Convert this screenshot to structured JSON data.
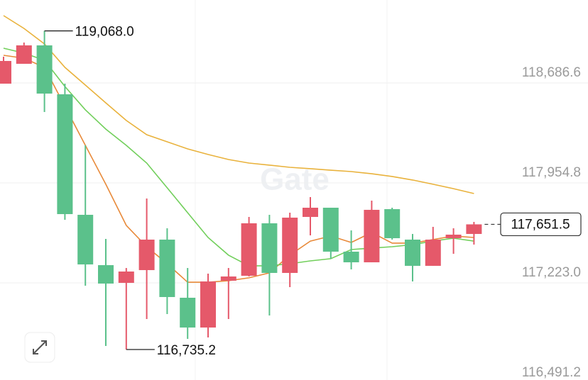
{
  "chart_data": {
    "type": "candlestick",
    "watermark": "Gate",
    "ylim": [
      116512,
      119294
    ],
    "yticks": [
      {
        "value": 118686.6,
        "label": "118,686.6"
      },
      {
        "value": 117954.8,
        "label": "117,954.8"
      },
      {
        "value": 117223.0,
        "label": "117,223.0"
      },
      {
        "value": 116491.2,
        "label": "116,491.2"
      }
    ],
    "grid": true,
    "up_color": "#e5596a",
    "down_color": "#5bc18b",
    "open": [
      118681.6,
      118826.9,
      118961.8,
      118603.7,
      117721.4,
      117352.9,
      117223.2,
      117316.6,
      117539.8,
      117114.2,
      116896.2,
      117238.8,
      117275.1,
      117659.2,
      117295.9,
      117705.9,
      117773.3,
      117451.6,
      117373.7,
      117762.9,
      117539.8,
      117347.8,
      117550.2,
      117581.3
    ],
    "high": [
      118878.8,
      118982.6,
      119068.0,
      118681.6,
      118230.1,
      117545.0,
      117332.2,
      117840.8,
      117622.8,
      117332.2,
      117290.7,
      117332.2,
      117705.9,
      117721.4,
      117737.0,
      117851.2,
      117773.3,
      117607.3,
      117825.2,
      117773.3,
      117581.3,
      117633.2,
      117622.8,
      117669.5
    ],
    "low": [
      118681.6,
      118826.9,
      118473.9,
      117685.1,
      117202.4,
      116761.3,
      116735.2,
      116958.5,
      116994.8,
      116813.2,
      116823.6,
      116958.5,
      117269.9,
      116984.5,
      117192.1,
      117570.9,
      117399.7,
      117321.8,
      117373.7,
      117539.8,
      117233.6,
      117347.8,
      117436.0,
      117503.5
    ],
    "close": [
      118847.7,
      118961.8,
      118608.9,
      117726.6,
      117358.1,
      117218.0,
      117306.2,
      117539.8,
      117119.4,
      116896.2,
      117233.6,
      117269.9,
      117659.2,
      117295.9,
      117700.7,
      117773.3,
      117451.6,
      117373.7,
      117757.8,
      117550.2,
      117347.8,
      117539.8,
      117576.1,
      117651.5
    ],
    "moving_averages": [
      {
        "color": "#e9b23c",
        "values": [
          119180,
          119086,
          118972,
          118801,
          118671,
          118541,
          118412,
          118308,
          118256,
          118204,
          118163,
          118126,
          118100,
          118085,
          118069,
          118059,
          118048,
          118038,
          118022,
          118002,
          117976,
          117945,
          117913,
          117877
        ]
      },
      {
        "color": "#e88a3a",
        "values": [
          118889,
          118868,
          118801,
          118516,
          118230,
          117945,
          117644,
          117488,
          117363,
          117228,
          117228,
          117239,
          117260,
          117296,
          117426,
          117529,
          117566,
          117519,
          117592,
          117514,
          117514,
          117540,
          117566,
          117555
        ]
      },
      {
        "color": "#72cf5c",
        "values": [
          118941,
          118905,
          118853,
          118661,
          118490,
          118349,
          118230,
          118100,
          117919,
          117737,
          117555,
          117426,
          117348,
          117348,
          117363,
          117384,
          117400,
          117467,
          117478,
          117488,
          117503,
          117529,
          117550,
          117529
        ]
      }
    ],
    "max_marker": {
      "value": 119068.0,
      "label": "119,068.0"
    },
    "min_marker": {
      "value": 116735.2,
      "label": "116,735.2"
    },
    "last_price": {
      "value": 117651.5,
      "label": "117,651.5"
    }
  }
}
